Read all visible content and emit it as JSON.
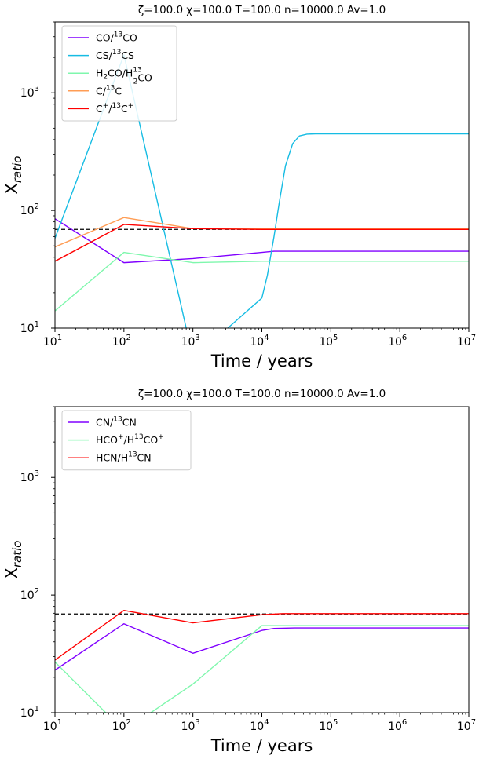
{
  "chart_data": [
    {
      "type": "line",
      "title": "ζ=100.0 χ=100.0 T=100.0 n=10000.0  Av=1.0",
      "xlabel": "Time / years",
      "ylabel": "X_ratio",
      "xscale": "log",
      "yscale": "log",
      "xlim": [
        10,
        10000000
      ],
      "ylim": [
        10,
        4000
      ],
      "xticks": [
        {
          "base": "10",
          "exp": "1"
        },
        {
          "base": "10",
          "exp": "2"
        },
        {
          "base": "10",
          "exp": "3"
        },
        {
          "base": "10",
          "exp": "4"
        },
        {
          "base": "10",
          "exp": "5"
        },
        {
          "base": "10",
          "exp": "6"
        },
        {
          "base": "10",
          "exp": "7"
        }
      ],
      "yticks": [
        {
          "base": "10",
          "exp": "1"
        },
        {
          "base": "10",
          "exp": "2"
        },
        {
          "base": "10",
          "exp": "3"
        }
      ],
      "legend_location": "upper-left",
      "reference_line": {
        "y": 69,
        "style": "dashed",
        "color": "#000000"
      },
      "series": [
        {
          "name": "CO/13CO",
          "legend": [
            {
              "t": "CO/"
            },
            {
              "t": "13",
              "sup": true
            },
            {
              "t": "CO"
            }
          ],
          "color": "#8000ff",
          "x": [
            10,
            100,
            1000,
            10000,
            15000,
            50000,
            10000000
          ],
          "y": [
            85,
            36,
            39,
            44,
            45,
            45,
            45
          ]
        },
        {
          "name": "CS/13CS",
          "legend": [
            {
              "t": "CS/"
            },
            {
              "t": "13",
              "sup": true
            },
            {
              "t": "CS"
            }
          ],
          "color": "#16bce3",
          "x": [
            10,
            100,
            800,
            2500,
            3200,
            10000,
            12000,
            15000,
            18000,
            22000,
            28000,
            35000,
            45000,
            60000,
            10000000
          ],
          "y": [
            58,
            2100,
            10,
            4.2,
            10,
            18,
            28,
            60,
            120,
            240,
            370,
            430,
            445,
            448,
            448
          ]
        },
        {
          "name": "H2CO/H213CO",
          "legend": [
            {
              "t": "H"
            },
            {
              "t": "2",
              "sub": true
            },
            {
              "t": "CO/H"
            },
            {
              "t": "13",
              "sup": true,
              "sub2": "2"
            },
            {
              "t": "CO"
            }
          ],
          "color": "#7ff7ad",
          "x": [
            10,
            100,
            1000,
            10000,
            10000000
          ],
          "y": [
            14,
            44,
            36,
            37,
            37
          ]
        },
        {
          "name": "C/13C",
          "legend": [
            {
              "t": "C/"
            },
            {
              "t": "13",
              "sup": true
            },
            {
              "t": "C"
            }
          ],
          "color": "#ff9d55",
          "x": [
            10,
            100,
            1000,
            10000,
            10000000
          ],
          "y": [
            49,
            87,
            70,
            70,
            70
          ]
        },
        {
          "name": "C+/13C+",
          "legend": [
            {
              "t": "C"
            },
            {
              "t": "+",
              "sup": true
            },
            {
              "t": "/"
            },
            {
              "t": "13",
              "sup": true
            },
            {
              "t": "C"
            },
            {
              "t": "+",
              "sup": true
            }
          ],
          "color": "#ff0000",
          "x": [
            10,
            100,
            1000,
            10000,
            10000000
          ],
          "y": [
            37,
            76,
            70,
            69,
            69
          ]
        }
      ]
    },
    {
      "type": "line",
      "title": "ζ=100.0 χ=100.0 T=100.0 n=10000.0  Av=1.0",
      "xlabel": "Time / years",
      "ylabel": "X_ratio",
      "xscale": "log",
      "yscale": "log",
      "xlim": [
        10,
        10000000
      ],
      "ylim": [
        10,
        4000
      ],
      "xticks": [
        {
          "base": "10",
          "exp": "1"
        },
        {
          "base": "10",
          "exp": "2"
        },
        {
          "base": "10",
          "exp": "3"
        },
        {
          "base": "10",
          "exp": "4"
        },
        {
          "base": "10",
          "exp": "5"
        },
        {
          "base": "10",
          "exp": "6"
        },
        {
          "base": "10",
          "exp": "7"
        }
      ],
      "yticks": [
        {
          "base": "10",
          "exp": "1"
        },
        {
          "base": "10",
          "exp": "2"
        },
        {
          "base": "10",
          "exp": "3"
        }
      ],
      "legend_location": "upper-left",
      "reference_line": {
        "y": 69,
        "style": "dashed",
        "color": "#000000"
      },
      "series": [
        {
          "name": "CN/13CN",
          "legend": [
            {
              "t": "CN/"
            },
            {
              "t": "13",
              "sup": true
            },
            {
              "t": "CN"
            }
          ],
          "color": "#8000ff",
          "x": [
            10,
            100,
            1000,
            10000,
            15000,
            30000,
            10000000
          ],
          "y": [
            23,
            57,
            32,
            50,
            52,
            52.5,
            52.5
          ]
        },
        {
          "name": "HCO+/H13CO+",
          "legend": [
            {
              "t": "HCO"
            },
            {
              "t": "+",
              "sup": true
            },
            {
              "t": "/H"
            },
            {
              "t": "13",
              "sup": true
            },
            {
              "t": "CO"
            },
            {
              "t": "+",
              "sup": true
            }
          ],
          "color": "#7ff7ad",
          "x": [
            10,
            100,
            1000,
            10000,
            10000000
          ],
          "y": [
            27,
            7,
            17.5,
            55,
            55
          ]
        },
        {
          "name": "HCN/H13CN",
          "legend": [
            {
              "t": "HCN/H"
            },
            {
              "t": "13",
              "sup": true
            },
            {
              "t": "CN"
            }
          ],
          "color": "#ff0000",
          "x": [
            10,
            100,
            1000,
            10000,
            20000,
            10000000
          ],
          "y": [
            28,
            74,
            58,
            68,
            69.5,
            69.5
          ]
        }
      ]
    }
  ]
}
